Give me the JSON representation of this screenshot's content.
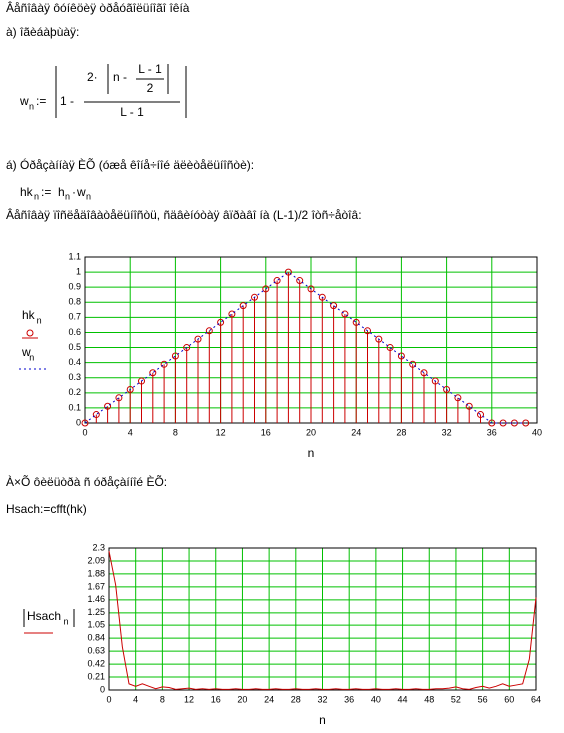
{
  "document": {
    "title": "Âåñîâàÿ ôóíêöèÿ òðåóãîëüíîãî îêíà",
    "part_a": "à) îãèáàþùàÿ:",
    "formula1": {
      "lhs": "w",
      "lhs_sub": "n",
      "assign": ":=",
      "one_minus": "1 -",
      "two": "2·",
      "n_minus": "n -",
      "num": "L - 1",
      "den": "2",
      "denom": "L - 1"
    },
    "part_b": "á) Óðåçàííàÿ ÈÕ (óæå êîíå÷íîé äëèòåëüíîñòè):",
    "formula2": {
      "lhs": "hk",
      "lhs_sub": "n",
      "assign": ":=",
      "h": "h",
      "h_sub": "n",
      "dot": "·",
      "w": "w",
      "w_sub": "n"
    },
    "caption1": "Âåñîâàÿ ïîñëåäîâàòåëüíîñòü, ñäâèíóòàÿ âïðàâî íà (L-1)/2 îòñ÷åòîâ:",
    "caption2": "À×Õ ôèëüòðà ñ óðåçàííîé ÈÕ:",
    "formula3": "Hsach:=cfft(hk)"
  },
  "chart_data": [
    {
      "type": "line",
      "xlabel": "n",
      "x": [
        0,
        1,
        2,
        3,
        4,
        5,
        6,
        7,
        8,
        9,
        10,
        11,
        12,
        13,
        14,
        15,
        16,
        17,
        18,
        19,
        20,
        21,
        22,
        23,
        24,
        25,
        26,
        27,
        28,
        29,
        30,
        31,
        32,
        33,
        34,
        35,
        36,
        37,
        38,
        39
      ],
      "series": [
        {
          "name": "hk",
          "subscript": "n",
          "style": "stem",
          "color": "#cc0000",
          "values": [
            0,
            0.056,
            0.111,
            0.167,
            0.222,
            0.278,
            0.333,
            0.389,
            0.444,
            0.5,
            0.556,
            0.611,
            0.667,
            0.722,
            0.778,
            0.833,
            0.889,
            0.944,
            1,
            0.944,
            0.889,
            0.833,
            0.778,
            0.722,
            0.667,
            0.611,
            0.556,
            0.5,
            0.444,
            0.389,
            0.333,
            0.278,
            0.222,
            0.167,
            0.111,
            0.056,
            0,
            0,
            0,
            0
          ]
        },
        {
          "name": "w",
          "subscript": "n",
          "style": "dotted",
          "color": "#0000cc",
          "values": [
            0,
            0.056,
            0.111,
            0.167,
            0.222,
            0.278,
            0.333,
            0.389,
            0.444,
            0.5,
            0.556,
            0.611,
            0.667,
            0.722,
            0.778,
            0.833,
            0.889,
            0.944,
            1,
            0.944,
            0.889,
            0.833,
            0.778,
            0.722,
            0.667,
            0.611,
            0.556,
            0.5,
            0.444,
            0.389,
            0.333,
            0.278,
            0.222,
            0.167,
            0.111,
            0.056,
            0,
            0,
            0,
            0
          ]
        }
      ],
      "xlim": [
        0,
        40
      ],
      "xticks": [
        0,
        4,
        8,
        12,
        16,
        20,
        24,
        28,
        32,
        36,
        40
      ],
      "ylim": [
        0,
        1.1
      ],
      "yticks": [
        0,
        0.1,
        0.2,
        0.3,
        0.4,
        0.5,
        0.6,
        0.7,
        0.8,
        0.9,
        1,
        1.1
      ],
      "grid": true,
      "grid_color": "#00c000"
    },
    {
      "type": "line",
      "xlabel": "n",
      "x": [
        0,
        1,
        2,
        3,
        4,
        5,
        6,
        7,
        8,
        9,
        10,
        11,
        12,
        13,
        14,
        15,
        16,
        17,
        18,
        19,
        20,
        21,
        22,
        23,
        24,
        25,
        26,
        27,
        28,
        29,
        30,
        31,
        32,
        33,
        34,
        35,
        36,
        37,
        38,
        39,
        40,
        41,
        42,
        43,
        44,
        45,
        46,
        47,
        48,
        49,
        50,
        51,
        52,
        53,
        54,
        55,
        56,
        57,
        58,
        59,
        60,
        61,
        62,
        63,
        64
      ],
      "series": [
        {
          "name": "Hsach",
          "subscript": "n",
          "style": "line",
          "color": "#cc0000",
          "values": [
            2.25,
            1.7,
            0.7,
            0.1,
            0.06,
            0.1,
            0.06,
            0.02,
            0.05,
            0.04,
            0.01,
            0.02,
            0.03,
            0.01,
            0.02,
            0.01,
            0.02,
            0.01,
            0.01,
            0.02,
            0.01,
            0.01,
            0.02,
            0.01,
            0.01,
            0.02,
            0.01,
            0.01,
            0.02,
            0.01,
            0.01,
            0.02,
            0.01,
            0.01,
            0.02,
            0.01,
            0.01,
            0.02,
            0.01,
            0.01,
            0.02,
            0.01,
            0.01,
            0.02,
            0.01,
            0.01,
            0.02,
            0.01,
            0.01,
            0.02,
            0.02,
            0.03,
            0.05,
            0.02,
            0.01,
            0.04,
            0.06,
            0.03,
            0.06,
            0.1,
            0.06,
            0.08,
            0.1,
            0.5,
            1.5
          ]
        }
      ],
      "xlim": [
        0,
        64
      ],
      "xticks": [
        0,
        4,
        8,
        12,
        16,
        20,
        24,
        28,
        32,
        36,
        40,
        44,
        48,
        52,
        56,
        60,
        64
      ],
      "ylim": [
        0,
        2.3
      ],
      "yticks": [
        0,
        0.21,
        0.42,
        0.63,
        0.84,
        1.05,
        1.25,
        1.46,
        1.67,
        1.88,
        2.09,
        2.3
      ],
      "grid": true,
      "grid_color": "#00c000"
    }
  ]
}
